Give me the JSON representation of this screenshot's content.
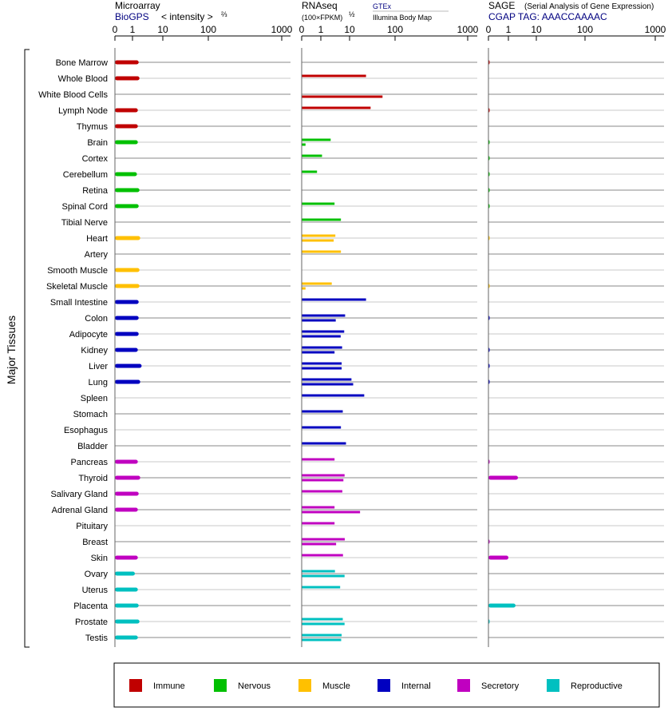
{
  "chart_data": {
    "type": "bar",
    "scale": "intensity^(2/3) nonlinear, ticks 0,1,10,100,1000",
    "y_axis_label": "Major Tissues",
    "categories": [
      "Bone Marrow",
      "Whole Blood",
      "White Blood Cells",
      "Lymph Node",
      "Thymus",
      "Brain",
      "Cortex",
      "Cerebellum",
      "Retina",
      "Spinal Cord",
      "Tibial Nerve",
      "Heart",
      "Artery",
      "Smooth Muscle",
      "Skeletal Muscle",
      "Small Intestine",
      "Colon",
      "Adipocyte",
      "Kidney",
      "Liver",
      "Lung",
      "Spleen",
      "Stomach",
      "Esophagus",
      "Bladder",
      "Pancreas",
      "Thyroid",
      "Salivary Gland",
      "Adrenal Gland",
      "Pituitary",
      "Breast",
      "Skin",
      "Ovary",
      "Uterus",
      "Placenta",
      "Prostate",
      "Testis"
    ],
    "groups": [
      "immune",
      "immune",
      "immune",
      "immune",
      "immune",
      "nervous",
      "nervous",
      "nervous",
      "nervous",
      "nervous",
      "nervous",
      "muscle",
      "muscle",
      "muscle",
      "muscle",
      "internal",
      "internal",
      "internal",
      "internal",
      "internal",
      "internal",
      "internal",
      "internal",
      "internal",
      "internal",
      "secretory",
      "secretory",
      "secretory",
      "secretory",
      "secretory",
      "secretory",
      "secretory",
      "reproductive",
      "reproductive",
      "reproductive",
      "reproductive",
      "reproductive"
    ],
    "panels": [
      {
        "key": "microarray",
        "title": "Microarray",
        "source": "BioGPS",
        "scale_label": "< intensity >",
        "scale_exp": "⅔",
        "ticks": [
          "0",
          "1",
          "10",
          "100",
          "1000"
        ],
        "values": [
          1.6,
          1.7,
          null,
          1.5,
          1.5,
          1.5,
          null,
          1.4,
          1.7,
          1.6,
          null,
          1.8,
          null,
          1.7,
          1.7,
          1.6,
          1.6,
          1.6,
          1.5,
          2.0,
          1.8,
          null,
          null,
          null,
          null,
          1.5,
          1.8,
          1.6,
          1.5,
          null,
          null,
          1.5,
          1.2,
          1.5,
          1.6,
          1.7,
          1.5
        ]
      },
      {
        "key": "rnaseq",
        "title": "RNAseq",
        "scale_label": "(100×FPKM)",
        "scale_exp": "½",
        "source_a": "GTEx",
        "source_b": "Illumina Body Map",
        "ticks": [
          "0",
          "1",
          "10",
          "100",
          "1000"
        ],
        "values_gtex": [
          null,
          23,
          null,
          29,
          null,
          2.2,
          1.1,
          0.8,
          null,
          3.0,
          5.0,
          3.2,
          5.0,
          null,
          2.4,
          23,
          7,
          6.5,
          5.5,
          5.3,
          11,
          21,
          5.8,
          5,
          7.5,
          3,
          6.7,
          5.6,
          3,
          3,
          6.8,
          5.9,
          3.1,
          4.7,
          null,
          5.8,
          5.3
        ],
        "values_ibm": [
          null,
          null,
          53,
          null,
          null,
          0.2,
          null,
          null,
          null,
          null,
          null,
          2.8,
          null,
          null,
          0.2,
          null,
          3.3,
          4.9,
          3.0,
          5.3,
          12,
          null,
          null,
          null,
          null,
          null,
          6.1,
          null,
          17,
          null,
          3.4,
          null,
          6.7,
          null,
          null,
          6.7,
          5.1
        ]
      },
      {
        "key": "sage",
        "title": "SAGE",
        "subtitle": "(Serial Analysis of Gene Expression)",
        "source": "CGAP TAG: AAACCAAAAC",
        "ticks": [
          "0",
          "1",
          "10",
          "100",
          "1000"
        ],
        "values": [
          0.02,
          null,
          null,
          0.02,
          null,
          0.01,
          0.01,
          0.01,
          0.01,
          0.01,
          null,
          0.01,
          null,
          null,
          0.01,
          null,
          0.02,
          null,
          0.02,
          0.02,
          0.02,
          null,
          null,
          null,
          null,
          0.02,
          2.2,
          null,
          null,
          null,
          0.02,
          1.0,
          null,
          null,
          1.8,
          0.01,
          null
        ]
      }
    ],
    "legend": [
      {
        "key": "immune",
        "label": "Immune",
        "color": "#c00000"
      },
      {
        "key": "nervous",
        "label": "Nervous",
        "color": "#00c000"
      },
      {
        "key": "muscle",
        "label": "Muscle",
        "color": "#ffc000"
      },
      {
        "key": "internal",
        "label": "Internal",
        "color": "#0000c0"
      },
      {
        "key": "secretory",
        "label": "Secretory",
        "color": "#c000c0"
      },
      {
        "key": "reproductive",
        "label": "Reproductive",
        "color": "#00c0c0"
      }
    ]
  }
}
